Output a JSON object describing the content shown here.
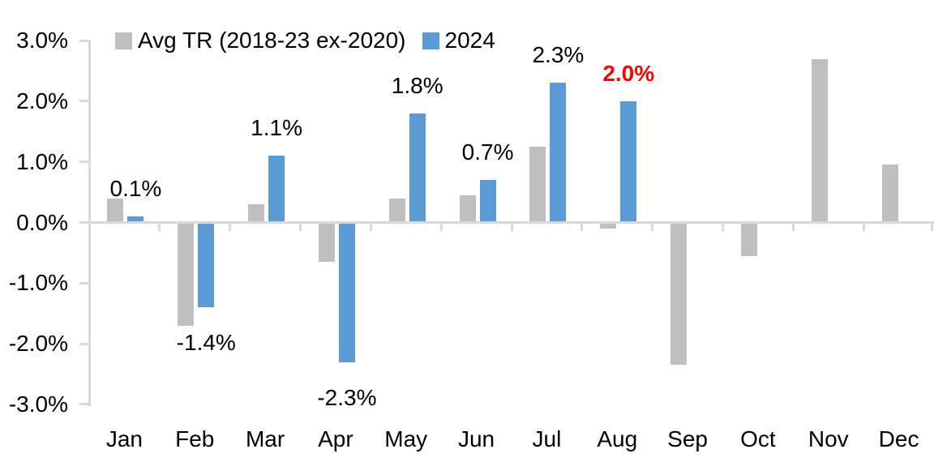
{
  "chart_data": {
    "type": "bar",
    "title": "",
    "categories": [
      "Jan",
      "Feb",
      "Mar",
      "Apr",
      "May",
      "Jun",
      "Jul",
      "Aug",
      "Sep",
      "Oct",
      "Nov",
      "Dec"
    ],
    "series": [
      {
        "name": "Avg TR (2018-23 ex-2020)",
        "color": "#BFBFBF",
        "values": [
          0.4,
          -1.7,
          0.3,
          -0.65,
          0.4,
          0.45,
          1.25,
          -0.1,
          -2.35,
          -0.55,
          2.7,
          0.95
        ]
      },
      {
        "name": "2024",
        "color": "#5B9BD5",
        "values": [
          0.1,
          -1.4,
          1.1,
          -2.3,
          1.8,
          0.7,
          2.3,
          2.0,
          null,
          null,
          null,
          null
        ]
      }
    ],
    "data_labels": [
      {
        "category": "Jan",
        "text": "0.1%",
        "color": "#000000",
        "bold": false
      },
      {
        "category": "Feb",
        "text": "-1.4%",
        "color": "#000000",
        "bold": false
      },
      {
        "category": "Mar",
        "text": "1.1%",
        "color": "#000000",
        "bold": false
      },
      {
        "category": "Apr",
        "text": "-2.3%",
        "color": "#000000",
        "bold": false
      },
      {
        "category": "May",
        "text": "1.8%",
        "color": "#000000",
        "bold": false
      },
      {
        "category": "Jun",
        "text": "0.7%",
        "color": "#000000",
        "bold": false
      },
      {
        "category": "Jul",
        "text": "2.3%",
        "color": "#000000",
        "bold": false
      },
      {
        "category": "Aug",
        "text": "2.0%",
        "color": "#FF0000",
        "bold": true
      }
    ],
    "y_axis": {
      "min": -3,
      "max": 3,
      "step": 1,
      "tick_labels": [
        "3.0%",
        "2.0%",
        "1.0%",
        "0.0%",
        "-1.0%",
        "-2.0%",
        "-3.0%"
      ]
    },
    "x_axis": {
      "label": ""
    },
    "legend_position": "top",
    "grid": false
  },
  "colors": {
    "background": "#FFFFFF",
    "axis": "#D9D9D9",
    "text": "#000000",
    "highlight": "#FF0000"
  }
}
